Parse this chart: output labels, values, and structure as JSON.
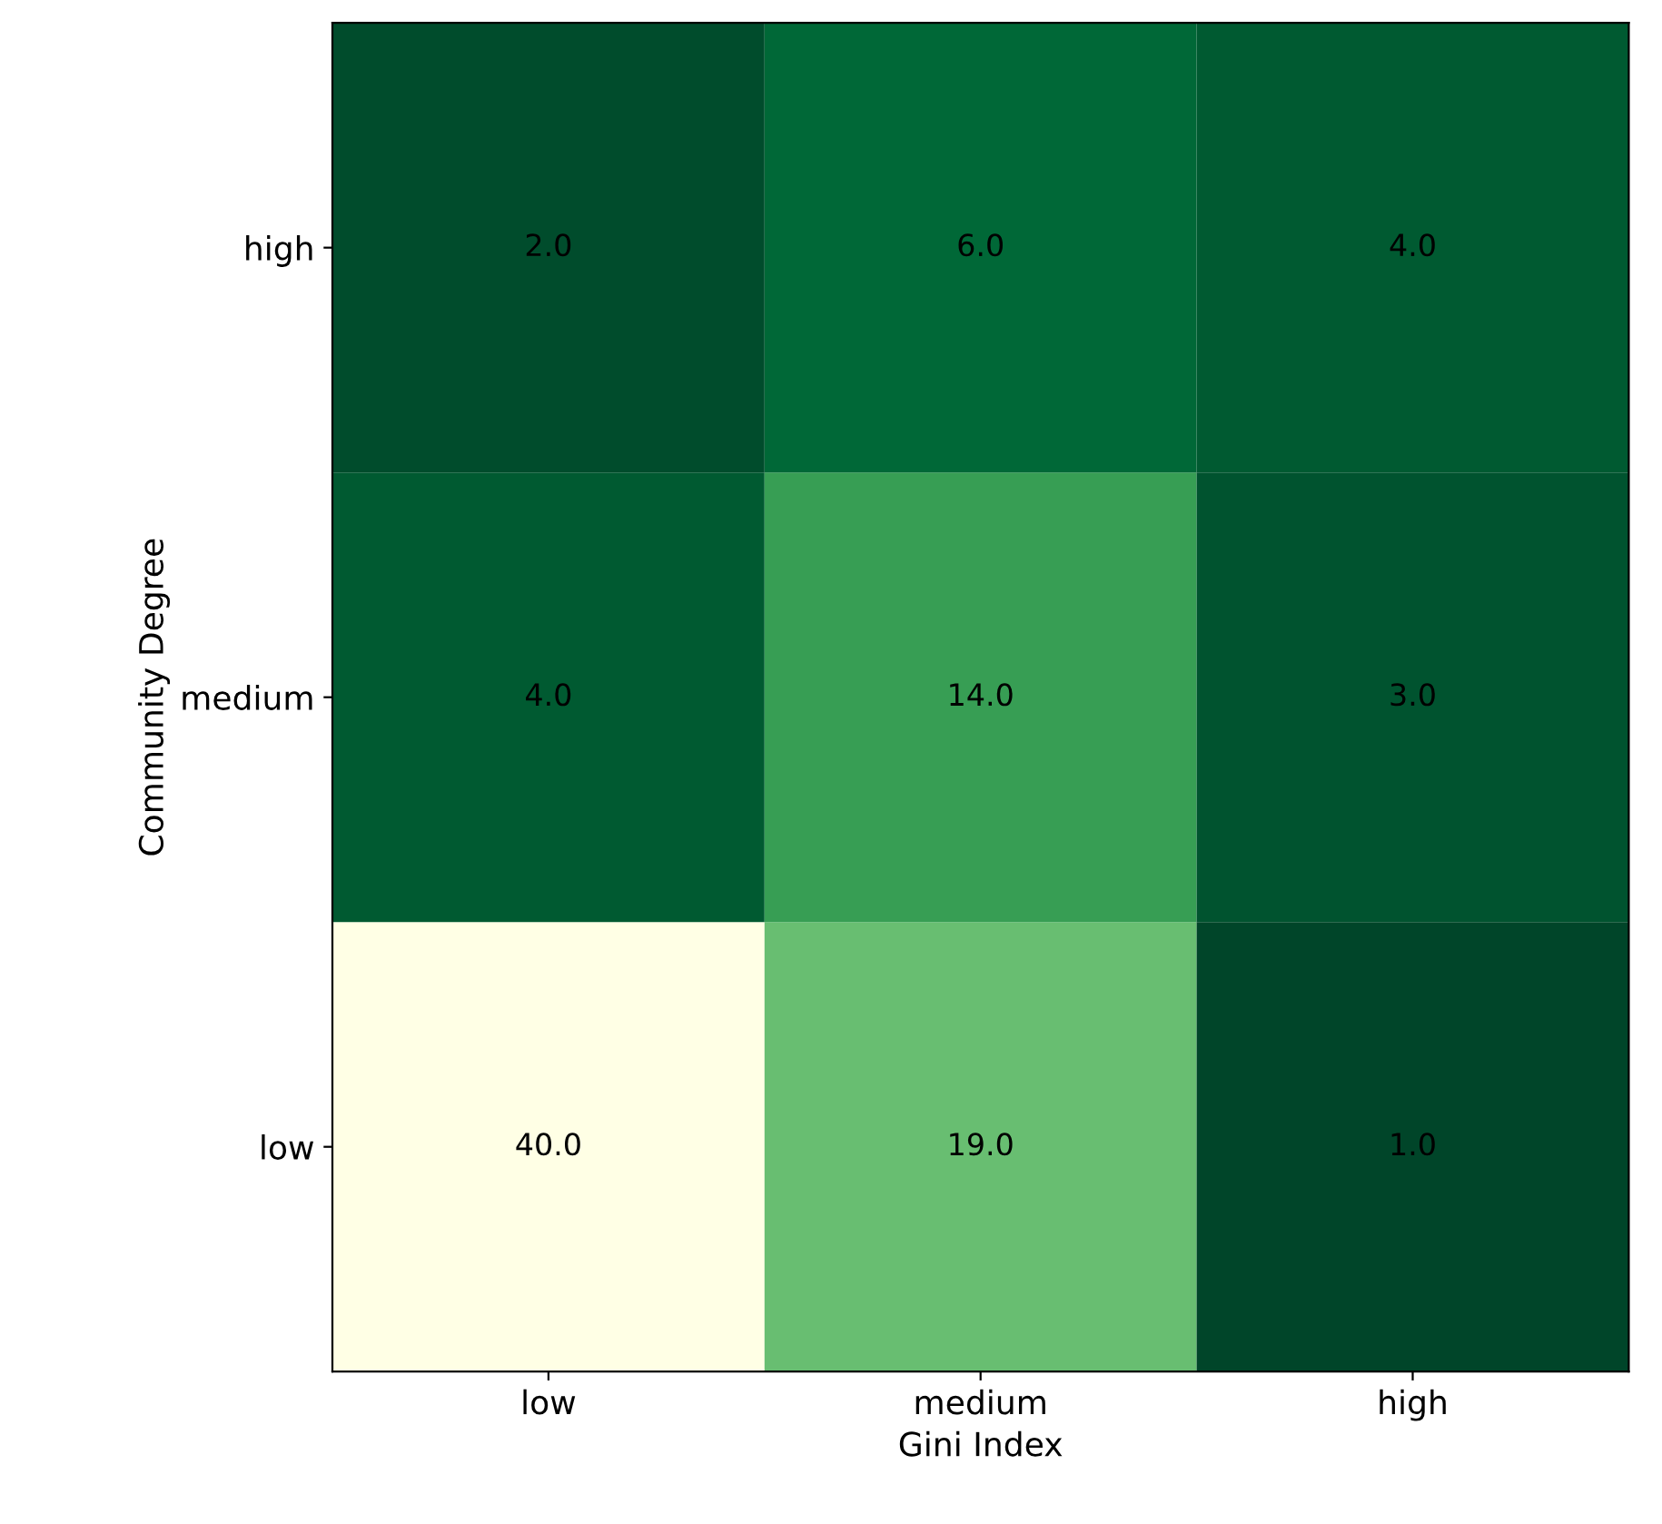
{
  "chart_data": {
    "type": "heatmap",
    "xlabel": "Gini Index",
    "ylabel": "Community Degree",
    "categories": [
      "low",
      "medium",
      "high"
    ],
    "y_categories": [
      "high",
      "medium",
      "low"
    ],
    "cells": [
      [
        2,
        6,
        4
      ],
      [
        4,
        14,
        3
      ],
      [
        40,
        19,
        1
      ]
    ],
    "cell_labels": [
      [
        "2.0",
        "6.0",
        "4.0"
      ],
      [
        "4.0",
        "14.0",
        "3.0"
      ],
      [
        "40.0",
        "19.0",
        "1.0"
      ]
    ],
    "grid": false
  }
}
